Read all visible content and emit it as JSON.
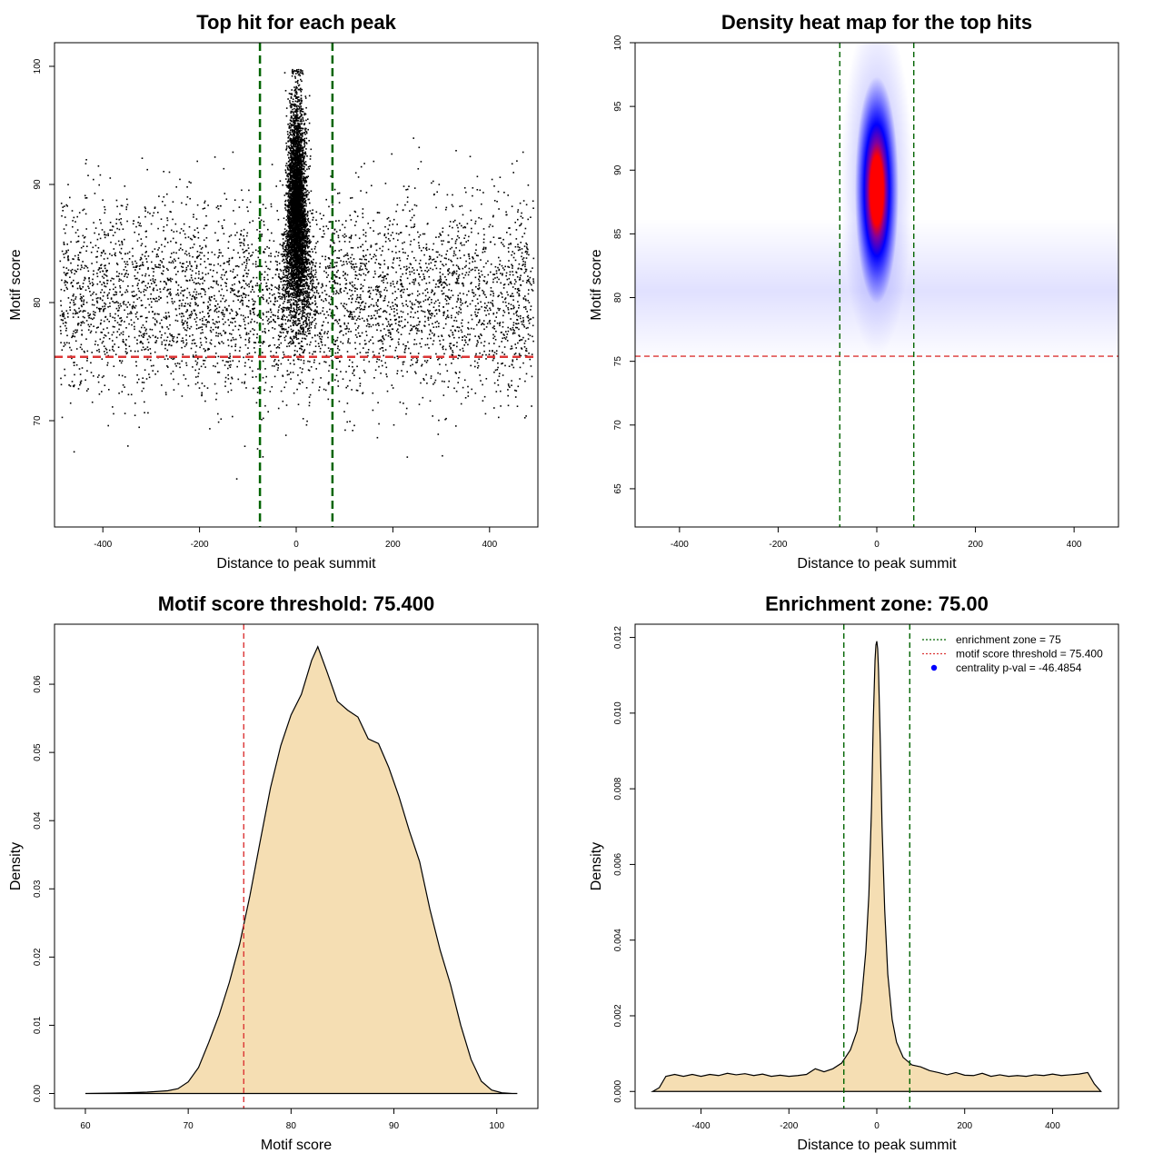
{
  "figure": {
    "background": "#ffffff"
  },
  "chart_data": [
    {
      "id": "scatter",
      "type": "scatter",
      "title": "Top hit for each peak",
      "xlabel": "Distance to peak summit",
      "ylabel": "Motif score",
      "xlim": [
        -500,
        500
      ],
      "ylim": [
        61,
        102
      ],
      "xticks": [
        -400,
        -200,
        0,
        200,
        400
      ],
      "xtick_labels": [
        "-400",
        "-200",
        "0",
        "200",
        "400"
      ],
      "yticks": [
        70,
        80,
        90,
        100
      ],
      "ytick_labels": [
        "70",
        "80",
        "90",
        "100"
      ],
      "point_color": "#000000",
      "points_summary": {
        "background": {
          "count": 4500,
          "x_range": [
            -490,
            490
          ],
          "y_mean": 80.5,
          "y_sd": 4.2
        },
        "central": {
          "count": 5000,
          "x_mean": 0,
          "x_sd": 9,
          "y_mean": 87.5,
          "y_sd": 4.5
        }
      },
      "vlines": [
        {
          "x": -75,
          "color": "#006400",
          "style": "dashed"
        },
        {
          "x": 75,
          "color": "#006400",
          "style": "dashed"
        }
      ],
      "hlines": [
        {
          "y": 75.4,
          "color": "#DC3535",
          "style": "dashed"
        }
      ]
    },
    {
      "id": "heatmap",
      "type": "heatmap",
      "title": "Density heat map for the top hits",
      "xlabel": "Distance to peak summit",
      "ylabel": "Motif score",
      "xlim": [
        -490,
        490
      ],
      "ylim": [
        62,
        100
      ],
      "xticks": [
        -400,
        -200,
        0,
        200,
        400
      ],
      "xtick_labels": [
        "-400",
        "-200",
        "0",
        "200",
        "400"
      ],
      "yticks": [
        65,
        70,
        75,
        80,
        85,
        90,
        95,
        100
      ],
      "ytick_labels": [
        "65",
        "70",
        "75",
        "80",
        "85",
        "90",
        "95",
        "100"
      ],
      "colors": [
        "#ffffff",
        "#0000ff",
        "#ff0000"
      ],
      "hotspot": {
        "x": 0,
        "y": 89
      },
      "background_band": {
        "y_center": 80.5
      },
      "vlines": [
        {
          "x": -75,
          "color": "#006400",
          "style": "dashed"
        },
        {
          "x": 75,
          "color": "#006400",
          "style": "dashed"
        }
      ],
      "hlines": [
        {
          "y": 75.4,
          "color": "#DC3535",
          "style": "dashed"
        }
      ]
    },
    {
      "id": "score_density",
      "type": "area",
      "title": "Motif score threshold: 75.400",
      "xlabel": "Motif score",
      "ylabel": "Density",
      "xlim": [
        57,
        104
      ],
      "ylim": [
        -0.0022,
        0.0688
      ],
      "xticks": [
        60,
        70,
        80,
        90,
        100
      ],
      "xtick_labels": [
        "60",
        "70",
        "80",
        "90",
        "100"
      ],
      "yticks": [
        0,
        0.01,
        0.02,
        0.03,
        0.04,
        0.05,
        0.06
      ],
      "ytick_labels": [
        "0.00",
        "0.01",
        "0.02",
        "0.03",
        "0.04",
        "0.05",
        "0.06"
      ],
      "fill": "#F5DEB3",
      "x": [
        60,
        64,
        66,
        68,
        69,
        70,
        71,
        72,
        73,
        74,
        75,
        76,
        77,
        78,
        79,
        80,
        81,
        82,
        82.6,
        83.5,
        84.5,
        85.5,
        86.5,
        87.5,
        88.5,
        89.5,
        90.5,
        91.5,
        92.5,
        93.5,
        94.5,
        95.5,
        96.5,
        97.5,
        98.5,
        99.5,
        100.5,
        101.5,
        102
      ],
      "y": [
        0,
        0.0001,
        0.0002,
        0.0004,
        0.0007,
        0.0017,
        0.0038,
        0.0075,
        0.0115,
        0.0163,
        0.0219,
        0.029,
        0.037,
        0.0448,
        0.051,
        0.0555,
        0.0585,
        0.0635,
        0.0655,
        0.0618,
        0.0575,
        0.0562,
        0.0552,
        0.052,
        0.0513,
        0.0478,
        0.0435,
        0.0385,
        0.034,
        0.027,
        0.021,
        0.016,
        0.01,
        0.005,
        0.0018,
        0.0005,
        0.0001,
        0,
        0
      ],
      "vlines": [
        {
          "x": 75.4,
          "color": "#DC3535",
          "style": "dashed"
        }
      ]
    },
    {
      "id": "position_density",
      "type": "area",
      "title": "Enrichment zone: 75.00",
      "xlabel": "Distance to peak summit",
      "ylabel": "Density",
      "xlim": [
        -550,
        550
      ],
      "ylim": [
        -0.00045,
        0.01235
      ],
      "xticks": [
        -400,
        -200,
        0,
        200,
        400
      ],
      "xtick_labels": [
        "-400",
        "-200",
        "0",
        "200",
        "400"
      ],
      "yticks": [
        0,
        0.002,
        0.004,
        0.006,
        0.008,
        0.01,
        0.012
      ],
      "ytick_labels": [
        "0.000",
        "0.002",
        "0.004",
        "0.006",
        "0.008",
        "0.010",
        "0.012"
      ],
      "fill": "#F5DEB3",
      "x": [
        -510,
        -495,
        -480,
        -460,
        -440,
        -420,
        -400,
        -380,
        -360,
        -340,
        -320,
        -300,
        -280,
        -260,
        -240,
        -220,
        -200,
        -180,
        -160,
        -140,
        -120,
        -100,
        -80,
        -60,
        -45,
        -35,
        -25,
        -18,
        -12,
        -8,
        -4,
        -2,
        0,
        2,
        4,
        8,
        12,
        18,
        25,
        35,
        45,
        60,
        80,
        100,
        120,
        140,
        160,
        180,
        200,
        220,
        240,
        260,
        280,
        300,
        320,
        340,
        360,
        380,
        400,
        420,
        440,
        460,
        480,
        495,
        510
      ],
      "y": [
        0,
        0.0001,
        0.0004,
        0.00045,
        0.0004,
        0.00045,
        0.0004,
        0.00045,
        0.00042,
        0.00048,
        0.00044,
        0.00047,
        0.00042,
        0.00046,
        0.0004,
        0.00043,
        0.0004,
        0.00042,
        0.00045,
        0.0006,
        0.00052,
        0.0006,
        0.00075,
        0.0011,
        0.0016,
        0.0024,
        0.0037,
        0.0052,
        0.0075,
        0.0098,
        0.0114,
        0.0118,
        0.0119,
        0.0117,
        0.0111,
        0.0092,
        0.007,
        0.0048,
        0.0031,
        0.0019,
        0.0013,
        0.0009,
        0.0007,
        0.00065,
        0.00055,
        0.0005,
        0.00044,
        0.0005,
        0.00043,
        0.00042,
        0.00048,
        0.0004,
        0.00044,
        0.0004,
        0.00042,
        0.0004,
        0.00044,
        0.00042,
        0.00046,
        0.00042,
        0.00044,
        0.00046,
        0.0005,
        0.0002,
        0
      ],
      "vlines": [
        {
          "x": -75,
          "color": "#006400",
          "style": "dashed"
        },
        {
          "x": 75,
          "color": "#006400",
          "style": "dashed"
        }
      ],
      "legend": {
        "position": "top-right",
        "entries": [
          {
            "label": "enrichment zone = 75",
            "color": "#006400",
            "kind": "dotted-line"
          },
          {
            "label": "motif score threshold = 75.400",
            "color": "#DC3535",
            "kind": "dotted-line"
          },
          {
            "label": "centrality p-val = -46.4854",
            "color": "#0000ff",
            "kind": "point"
          }
        ]
      }
    }
  ]
}
